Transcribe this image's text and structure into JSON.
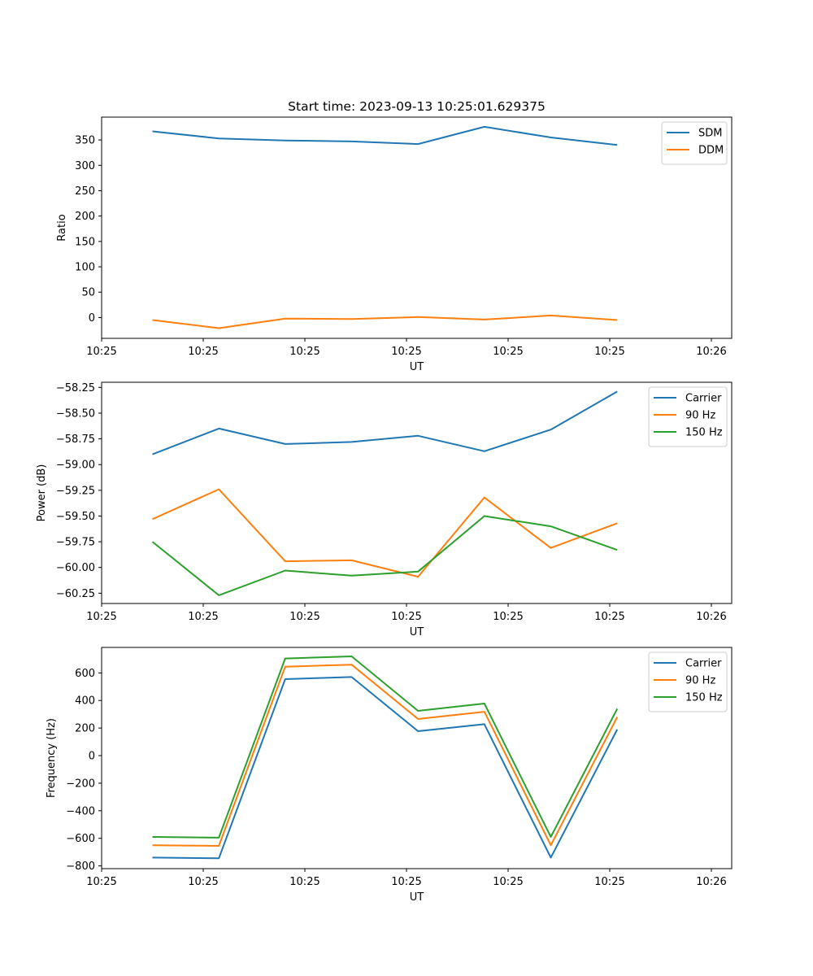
{
  "chart_data": [
    {
      "type": "line",
      "title": "Start time: 2023-09-13 10:25:01.629375",
      "xlabel": "UT",
      "ylabel": "Ratio",
      "xlim": [
        0,
        9.3
      ],
      "ylim": [
        -41,
        395
      ],
      "xticks": [
        0,
        1.5,
        3,
        4.5,
        6,
        7.5,
        9
      ],
      "xtick_labels": [
        "10:25",
        "10:25",
        "10:25",
        "10:25",
        "10:25",
        "10:25",
        "10:26"
      ],
      "yticks": [
        0,
        50,
        100,
        150,
        200,
        250,
        300,
        350
      ],
      "ytick_labels": [
        "0",
        "50",
        "100",
        "150",
        "200",
        "250",
        "300",
        "350"
      ],
      "legend_position": "top-right",
      "x": [
        0.75,
        1.73,
        2.71,
        3.69,
        4.67,
        5.65,
        6.63,
        7.61
      ],
      "series": [
        {
          "name": "SDM",
          "color": "#1f77b4",
          "values": [
            367,
            353,
            349,
            347,
            342,
            376,
            355,
            340
          ]
        },
        {
          "name": "DDM",
          "color": "#ff7f0e",
          "values": [
            -5,
            -21,
            -2,
            -3,
            1,
            -4,
            4,
            -5
          ]
        }
      ]
    },
    {
      "type": "line",
      "title": "",
      "xlabel": "UT",
      "ylabel": "Power (dB)",
      "xlim": [
        0,
        9.3
      ],
      "ylim": [
        -60.35,
        -58.2
      ],
      "xticks": [
        0,
        1.5,
        3,
        4.5,
        6,
        7.5,
        9
      ],
      "xtick_labels": [
        "10:25",
        "10:25",
        "10:25",
        "10:25",
        "10:25",
        "10:25",
        "10:26"
      ],
      "yticks": [
        -60.25,
        -60.0,
        -59.75,
        -59.5,
        -59.25,
        -59.0,
        -58.75,
        -58.5,
        -58.25
      ],
      "ytick_labels": [
        "−60.25",
        "−60.00",
        "−59.75",
        "−59.50",
        "−59.25",
        "−59.00",
        "−58.75",
        "−58.50",
        "−58.25"
      ],
      "legend_position": "top-right",
      "x": [
        0.75,
        1.73,
        2.71,
        3.69,
        4.67,
        5.65,
        6.63,
        7.61
      ],
      "series": [
        {
          "name": "Carrier",
          "color": "#1f77b4",
          "values": [
            -58.9,
            -58.65,
            -58.8,
            -58.78,
            -58.72,
            -58.87,
            -58.66,
            -58.29
          ]
        },
        {
          "name": "90 Hz",
          "color": "#ff7f0e",
          "values": [
            -59.53,
            -59.24,
            -59.94,
            -59.93,
            -60.09,
            -59.32,
            -59.81,
            -59.57
          ]
        },
        {
          "name": "150 Hz",
          "color": "#2ca02c",
          "values": [
            -59.75,
            -60.27,
            -60.03,
            -60.08,
            -60.04,
            -59.5,
            -59.6,
            -59.83
          ]
        }
      ]
    },
    {
      "type": "line",
      "title": "",
      "xlabel": "UT",
      "ylabel": "Frequency (Hz)",
      "xlim": [
        0,
        9.3
      ],
      "ylim": [
        -820,
        785
      ],
      "xticks": [
        0,
        1.5,
        3,
        4.5,
        6,
        7.5,
        9
      ],
      "xtick_labels": [
        "10:25",
        "10:25",
        "10:25",
        "10:25",
        "10:25",
        "10:25",
        "10:26"
      ],
      "yticks": [
        -800,
        -600,
        -400,
        -200,
        0,
        200,
        400,
        600
      ],
      "ytick_labels": [
        "−800",
        "−600",
        "−400",
        "−200",
        "0",
        "200",
        "400",
        "600"
      ],
      "legend_position": "top-right",
      "x": [
        0.75,
        1.73,
        2.71,
        3.69,
        4.67,
        5.65,
        6.63,
        7.61
      ],
      "series": [
        {
          "name": "Carrier",
          "color": "#1f77b4",
          "values": [
            -740,
            -745,
            555,
            570,
            177,
            228,
            -740,
            190
          ]
        },
        {
          "name": "90 Hz",
          "color": "#ff7f0e",
          "values": [
            -650,
            -655,
            645,
            660,
            266,
            318,
            -650,
            280
          ]
        },
        {
          "name": "150 Hz",
          "color": "#2ca02c",
          "values": [
            -590,
            -595,
            705,
            720,
            325,
            378,
            -590,
            340
          ]
        }
      ]
    }
  ]
}
